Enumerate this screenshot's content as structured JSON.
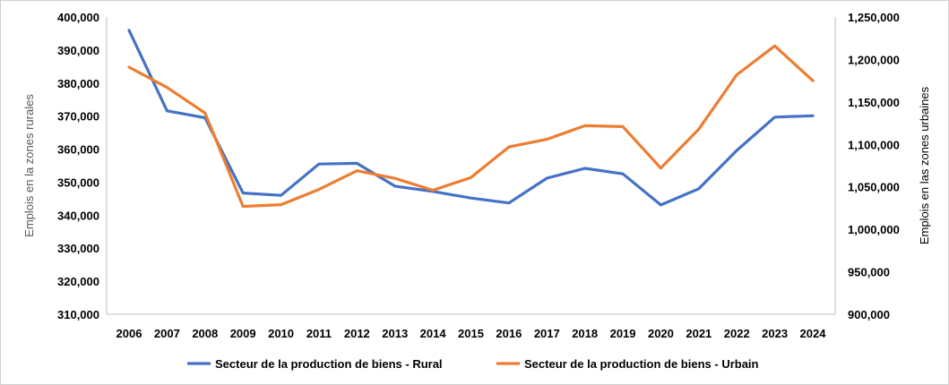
{
  "chart_data": {
    "type": "line",
    "title": "",
    "categories": [
      "2006",
      "2007",
      "2008",
      "2009",
      "2010",
      "2011",
      "2012",
      "2013",
      "2014",
      "2015",
      "2016",
      "2017",
      "2018",
      "2019",
      "2020",
      "2021",
      "2022",
      "2023",
      "2024"
    ],
    "ylabel_left": "Emplois en la zones rurales",
    "ylabel_right": "Emplois en las zones urbaines",
    "ylim_left": [
      310000,
      400000
    ],
    "ylim_right": [
      900000,
      1250000
    ],
    "yticks_left": [
      "310,000",
      "320,000",
      "330,000",
      "340,000",
      "350,000",
      "360,000",
      "370,000",
      "380,000",
      "390,000",
      "400,000"
    ],
    "yticks_right": [
      "900,000",
      "950,000",
      "1,000,000",
      "1,050,000",
      "1,100,000",
      "1,150,000",
      "1,200,000",
      "1,250,000"
    ],
    "grid": false,
    "legend_position": "bottom",
    "series": [
      {
        "name": "Secteur de la production de biens - Rural",
        "axis": "left",
        "color": "#4472C4",
        "values": [
          396000,
          371600,
          369500,
          346700,
          346000,
          355500,
          355700,
          348800,
          347200,
          345200,
          343700,
          351200,
          354200,
          352500,
          343100,
          348000,
          359600,
          369700,
          370100
        ]
      },
      {
        "name": "Secteur de la production de biens - Urbain",
        "axis": "right",
        "color": "#ED7D31",
        "values": [
          1191000,
          1167000,
          1137000,
          1027000,
          1029000,
          1047000,
          1069000,
          1060000,
          1046000,
          1061000,
          1097000,
          1106000,
          1122000,
          1121000,
          1072000,
          1118000,
          1182000,
          1216000,
          1175000
        ]
      }
    ]
  }
}
